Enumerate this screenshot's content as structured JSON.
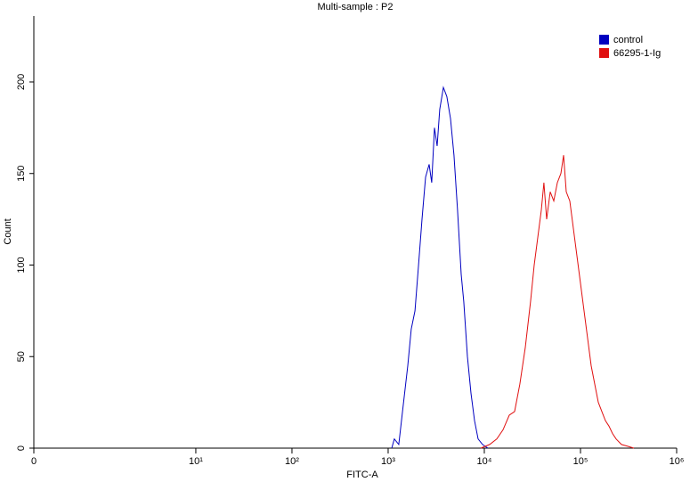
{
  "chart_data": {
    "type": "histogram-overlay",
    "title": "Multi-sample : P2",
    "x_label": "FITC-A",
    "y_label": "Count",
    "xlim": [
      0,
      1000000
    ],
    "xticks": [
      0,
      {
        "value": 10,
        "label": "10¹"
      },
      {
        "value": 100,
        "label": "10²"
      },
      {
        "value": 1000,
        "label": "10³"
      },
      {
        "value": 10000,
        "label": "10⁴"
      },
      {
        "value": 100000,
        "label": "10⁵"
      },
      {
        "value": 1000000,
        "label": "10⁶"
      }
    ],
    "ylim": [
      0,
      236
    ],
    "yticks": [
      0,
      50,
      100,
      150,
      200
    ],
    "legend": "top-right",
    "series": [
      {
        "name": "control",
        "color": "#0000c0",
        "x": [
          1090,
          1160,
          1290,
          1410,
          1600,
          1740,
          1900,
          2070,
          2250,
          2450,
          2670,
          2840,
          3030,
          3230,
          3440,
          3750,
          4080,
          4450,
          4840,
          5270,
          5750,
          6120,
          6670,
          7270,
          7910,
          8620,
          9580,
          10900
        ],
        "values": [
          0,
          5,
          2,
          20,
          45,
          65,
          75,
          100,
          125,
          148,
          155,
          145,
          175,
          165,
          185,
          197,
          192,
          180,
          160,
          130,
          95,
          80,
          50,
          30,
          15,
          5,
          2,
          0
        ]
      },
      {
        "name": "66295-1-Ig",
        "color": "#e01010",
        "x": [
          9180,
          11370,
          13490,
          15640,
          18160,
          20640,
          23440,
          26670,
          30280,
          33010,
          35940,
          39170,
          41690,
          44460,
          48420,
          52750,
          57420,
          62530,
          66680,
          71120,
          77450,
          84330,
          91830,
          100000,
          108900,
          118600,
          129200,
          140600,
          153100,
          166800,
          181600,
          197700,
          215400,
          234500,
          266700,
          309500,
          359400
        ],
        "values": [
          0,
          2,
          5,
          10,
          18,
          20,
          35,
          55,
          80,
          100,
          115,
          130,
          145,
          125,
          140,
          135,
          145,
          150,
          160,
          140,
          135,
          120,
          105,
          90,
          75,
          60,
          45,
          35,
          25,
          20,
          15,
          12,
          8,
          5,
          2,
          1,
          0
        ]
      }
    ]
  }
}
